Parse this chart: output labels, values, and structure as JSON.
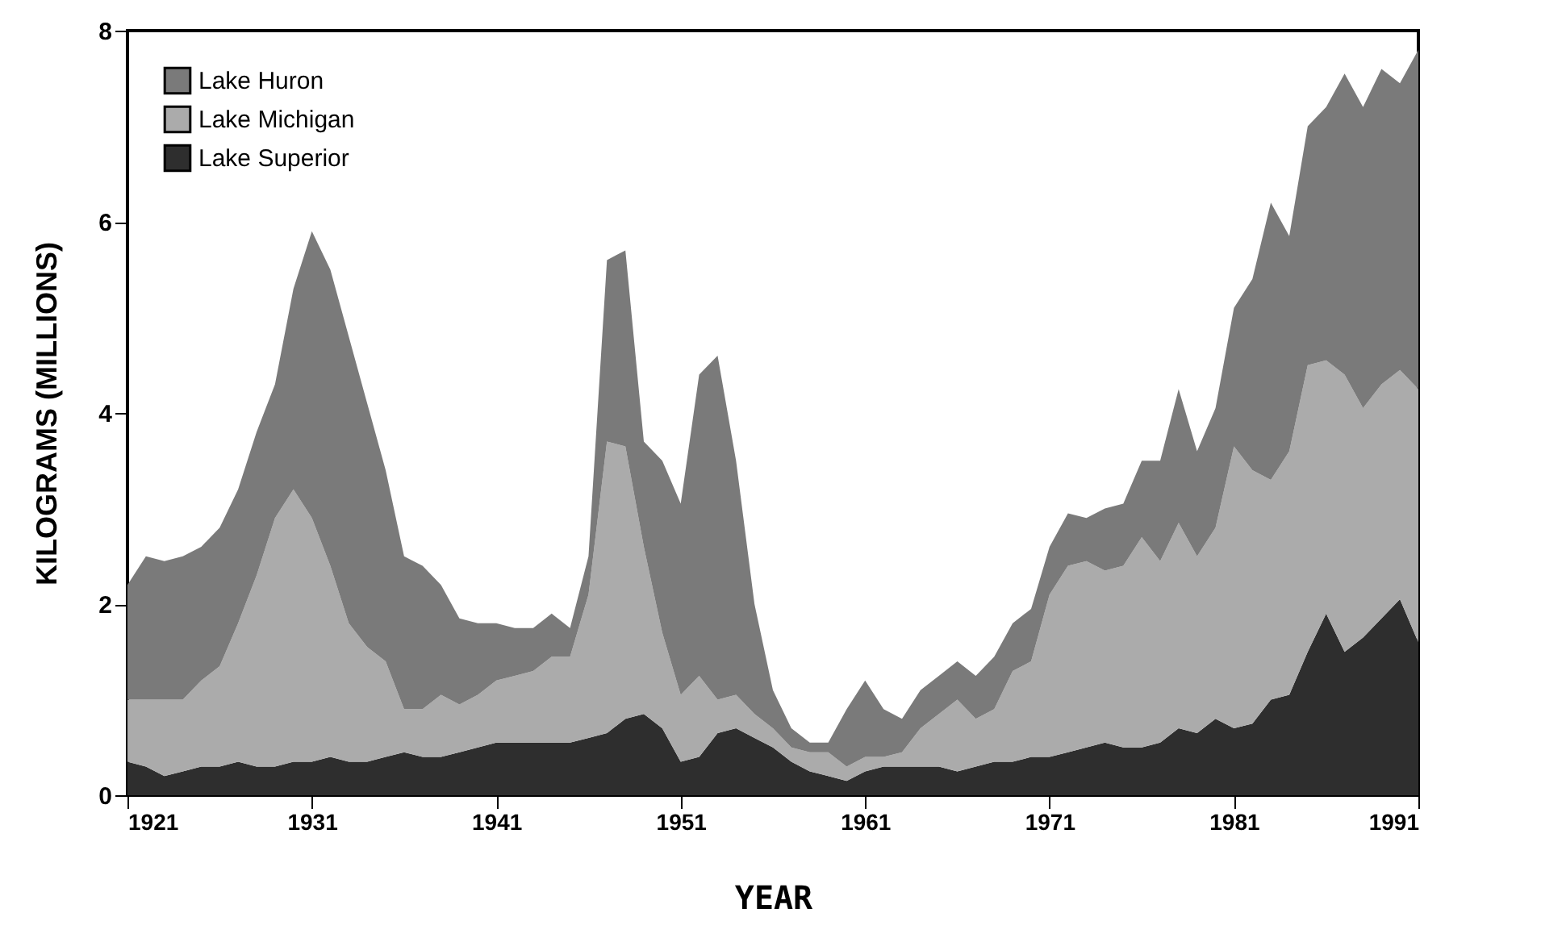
{
  "chart_data": {
    "type": "area",
    "stacked": true,
    "xlabel": "YEAR",
    "ylabel": "KILOGRAMS (MILLIONS)",
    "x": [
      1921,
      1922,
      1923,
      1924,
      1925,
      1926,
      1927,
      1928,
      1929,
      1930,
      1931,
      1932,
      1933,
      1934,
      1935,
      1936,
      1937,
      1938,
      1939,
      1940,
      1941,
      1942,
      1943,
      1944,
      1945,
      1946,
      1947,
      1948,
      1949,
      1950,
      1951,
      1952,
      1953,
      1954,
      1955,
      1956,
      1957,
      1958,
      1959,
      1960,
      1961,
      1962,
      1963,
      1964,
      1965,
      1966,
      1967,
      1968,
      1969,
      1970,
      1971,
      1972,
      1973,
      1974,
      1975,
      1976,
      1977,
      1978,
      1979,
      1980,
      1981,
      1982,
      1983,
      1984,
      1985,
      1986,
      1987,
      1988,
      1989,
      1990,
      1991
    ],
    "xlim": [
      1921,
      1991
    ],
    "xticks": [
      1921,
      1931,
      1941,
      1951,
      1961,
      1971,
      1981,
      1991
    ],
    "ylim": [
      0,
      8
    ],
    "yticks": [
      0,
      2,
      4,
      6,
      8
    ],
    "grid": false,
    "legend": "top left",
    "series": [
      {
        "name": "Lake Superior",
        "color": "#2e2e2e",
        "values": [
          0.35,
          0.3,
          0.2,
          0.25,
          0.3,
          0.3,
          0.35,
          0.3,
          0.3,
          0.35,
          0.35,
          0.4,
          0.35,
          0.35,
          0.4,
          0.45,
          0.4,
          0.4,
          0.45,
          0.5,
          0.55,
          0.55,
          0.55,
          0.55,
          0.55,
          0.6,
          0.65,
          0.8,
          0.85,
          0.7,
          0.35,
          0.4,
          0.65,
          0.7,
          0.6,
          0.5,
          0.35,
          0.25,
          0.2,
          0.15,
          0.25,
          0.3,
          0.3,
          0.3,
          0.3,
          0.25,
          0.3,
          0.35,
          0.35,
          0.4,
          0.4,
          0.45,
          0.5,
          0.55,
          0.5,
          0.5,
          0.55,
          0.7,
          0.65,
          0.8,
          0.7,
          0.75,
          1.0,
          1.05,
          1.5,
          1.9,
          1.5,
          1.65,
          1.85,
          2.05,
          1.6
        ]
      },
      {
        "name": "Lake Michigan",
        "color": "#ababab",
        "values": [
          0.65,
          0.7,
          0.8,
          0.75,
          0.9,
          1.05,
          1.45,
          2.0,
          2.6,
          2.85,
          2.55,
          2.0,
          1.45,
          1.2,
          1.0,
          0.45,
          0.5,
          0.65,
          0.5,
          0.55,
          0.65,
          0.7,
          0.75,
          0.9,
          0.9,
          1.5,
          3.05,
          2.85,
          1.75,
          1.0,
          0.7,
          0.85,
          0.35,
          0.35,
          0.25,
          0.2,
          0.15,
          0.2,
          0.25,
          0.15,
          0.15,
          0.1,
          0.15,
          0.4,
          0.55,
          0.75,
          0.5,
          0.55,
          0.95,
          1.0,
          1.7,
          1.95,
          1.95,
          1.8,
          1.9,
          2.2,
          1.9,
          2.15,
          1.85,
          2.0,
          2.95,
          2.65,
          2.3,
          2.55,
          3.0,
          2.65,
          2.9,
          2.4,
          2.45,
          2.4,
          2.65
        ]
      },
      {
        "name": "Lake Huron",
        "color": "#7a7a7a",
        "values": [
          1.2,
          1.5,
          1.45,
          1.5,
          1.4,
          1.45,
          1.4,
          1.5,
          1.4,
          2.1,
          3.0,
          3.1,
          3.0,
          2.55,
          2.0,
          1.6,
          1.5,
          1.15,
          0.9,
          0.75,
          0.6,
          0.5,
          0.45,
          0.45,
          0.3,
          0.4,
          1.9,
          2.05,
          1.1,
          1.8,
          2.0,
          3.15,
          3.6,
          2.45,
          1.15,
          0.4,
          0.2,
          0.1,
          0.1,
          0.6,
          0.8,
          0.5,
          0.35,
          0.4,
          0.4,
          0.4,
          0.45,
          0.55,
          0.5,
          0.55,
          0.5,
          0.55,
          0.45,
          0.65,
          0.65,
          0.8,
          1.05,
          1.4,
          1.1,
          1.25,
          1.45,
          2.0,
          2.9,
          2.25,
          2.5,
          2.65,
          3.15,
          3.15,
          3.3,
          3.0,
          3.55
        ]
      }
    ]
  }
}
